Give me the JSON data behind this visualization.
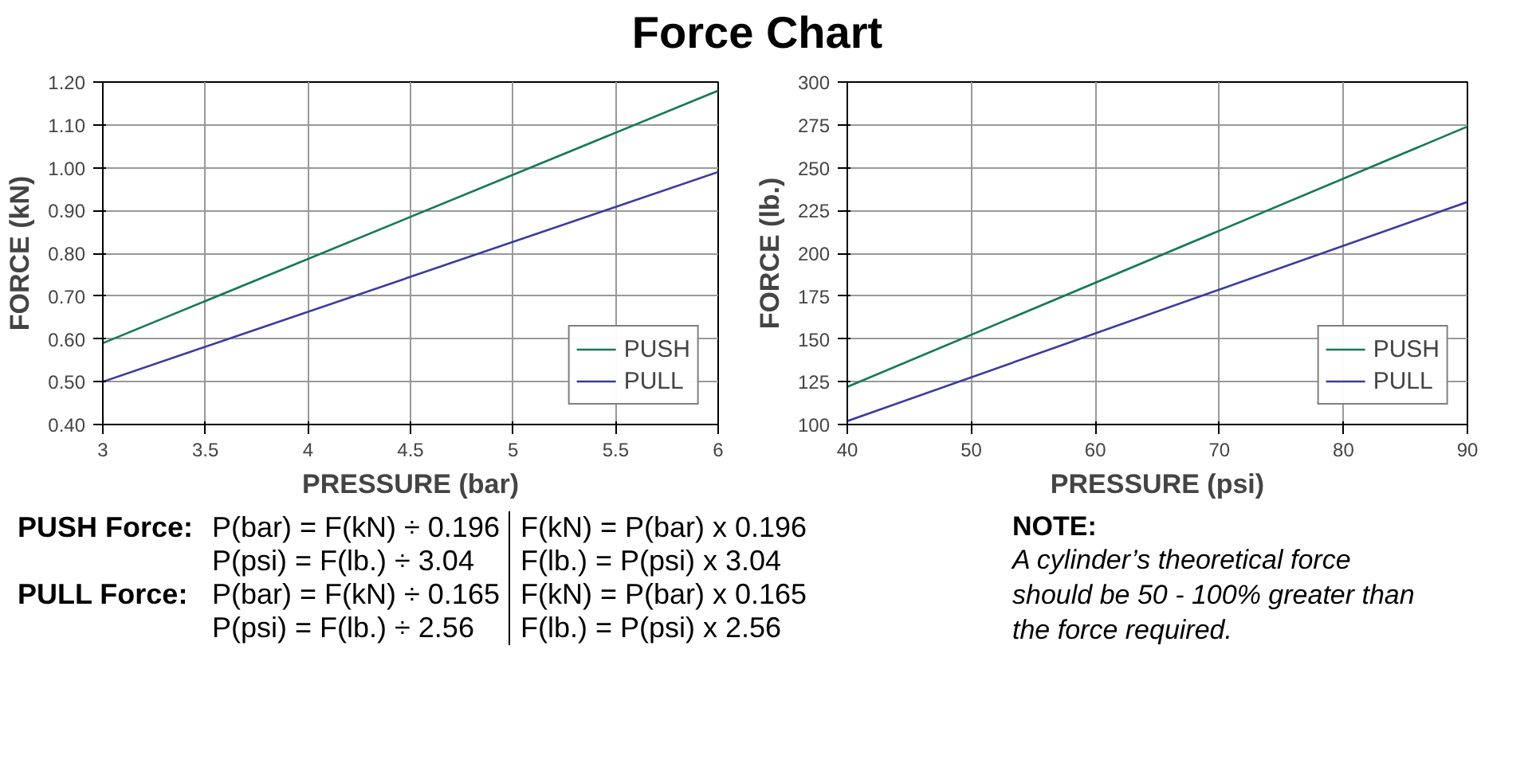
{
  "chart_data": [
    {
      "type": "line",
      "title": "Force Chart",
      "xlabel": "PRESSURE (bar)",
      "ylabel": "FORCE (kN)",
      "x": [
        3,
        6
      ],
      "series": [
        {
          "name": "PUSH",
          "color": "#17795a",
          "values": [
            0.59,
            1.18
          ]
        },
        {
          "name": "PULL",
          "color": "#3b3b9e",
          "values": [
            0.5,
            0.99
          ]
        }
      ],
      "xlim": [
        3,
        6
      ],
      "xticks": [
        3,
        3.5,
        4,
        4.5,
        5,
        5.5,
        6
      ],
      "ylim": [
        0.4,
        1.2
      ],
      "yticks": [
        {
          "value": 0.4,
          "label": "0.40"
        },
        {
          "value": 0.5,
          "label": "0.50"
        },
        {
          "value": 0.6,
          "label": "0.60"
        },
        {
          "value": 0.7,
          "label": "0.70"
        },
        {
          "value": 0.8,
          "label": "0.80"
        },
        {
          "value": 0.9,
          "label": "0.90"
        },
        {
          "value": 1.0,
          "label": "1.00"
        },
        {
          "value": 1.1,
          "label": "1.10"
        },
        {
          "value": 1.2,
          "label": "1.20"
        }
      ],
      "grid": true,
      "legend": "bottom right",
      "marker": "none",
      "line_style": "solid",
      "annotations": [
        "PUSH Force:",
        "P(bar) = F(kN) ÷ 0.196",
        "F(kN) = P(bar) x 0.196",
        "P(psi) = F(lb.) ÷ 3.04",
        "F(lb.) = P(psi) x 3.04",
        "PULL Force:",
        "P(bar) = F(kN) ÷ 0.165",
        "F(kN) = P(bar) x 0.165",
        "P(psi) = F(lb.) ÷ 2.56",
        "F(lb.) = P(psi) x 2.56",
        "NOTE:",
        "A cylinder’s theoretical force should be 50 - 100% greater than the force required."
      ]
    },
    {
      "type": "line",
      "xlabel": "PRESSURE (psi)",
      "ylabel": "FORCE (lb.)",
      "x": [
        40,
        90
      ],
      "series": [
        {
          "name": "PUSH",
          "color": "#17795a",
          "values": [
            122,
            274
          ]
        },
        {
          "name": "PULL",
          "color": "#3b3b9e",
          "values": [
            102,
            230
          ]
        }
      ],
      "xlim": [
        40,
        90
      ],
      "xticks": [
        40,
        50,
        60,
        70,
        80,
        90
      ],
      "ylim": [
        100,
        300
      ],
      "yticks": [
        100,
        125,
        150,
        175,
        200,
        225,
        250,
        275,
        300
      ],
      "grid": true,
      "legend": "bottom right",
      "marker": "none",
      "line_style": "solid"
    }
  ]
}
